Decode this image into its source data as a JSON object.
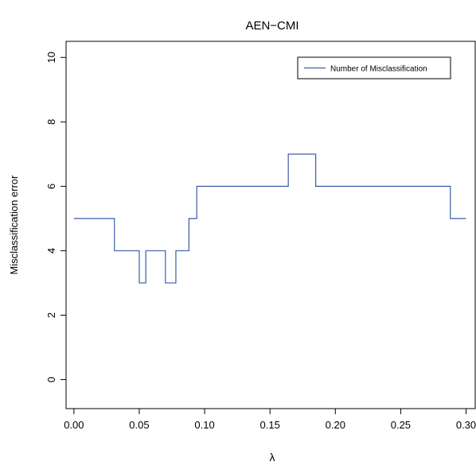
{
  "chart_data": {
    "type": "line",
    "step": true,
    "title": "AEN−CMI",
    "xlabel": "λ",
    "ylabel": "Misclassification error",
    "xlim": [
      -0.006,
      0.307
    ],
    "ylim": [
      -0.9,
      10.5
    ],
    "x_ticks": [
      0.0,
      0.05,
      0.1,
      0.15,
      0.2,
      0.25,
      0.3
    ],
    "x_tick_labels": [
      "0.00",
      "0.05",
      "0.10",
      "0.15",
      "0.20",
      "0.25",
      "0.30"
    ],
    "y_ticks": [
      0,
      2,
      4,
      6,
      8,
      10
    ],
    "y_tick_labels": [
      "0",
      "2",
      "4",
      "6",
      "8",
      "10"
    ],
    "grid": false,
    "legend_position": "top-right",
    "series": [
      {
        "name": "Number of Misclassification",
        "color": "#3a5ca8",
        "x": [
          0.0,
          0.031,
          0.031,
          0.05,
          0.05,
          0.055,
          0.055,
          0.07,
          0.07,
          0.078,
          0.078,
          0.088,
          0.088,
          0.094,
          0.094,
          0.164,
          0.164,
          0.185,
          0.185,
          0.288,
          0.288,
          0.3
        ],
        "y": [
          5,
          5,
          4,
          4,
          3,
          3,
          4,
          4,
          3,
          3,
          4,
          4,
          5,
          5,
          6,
          6,
          7,
          7,
          6,
          6,
          5,
          5
        ]
      }
    ]
  }
}
